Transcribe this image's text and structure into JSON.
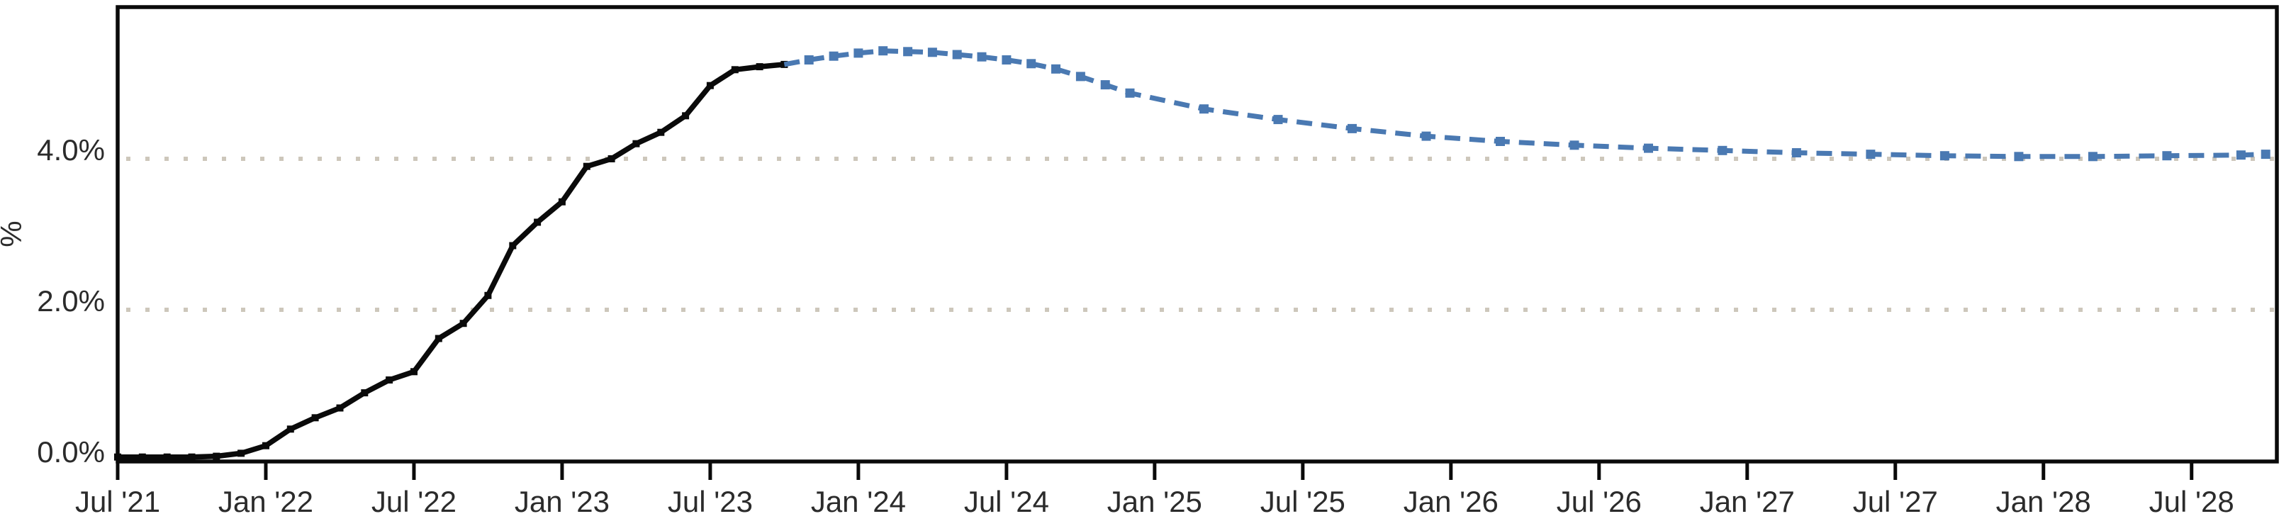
{
  "chart_data": {
    "type": "line",
    "title": "",
    "xlabel": "",
    "ylabel": "%",
    "grid": "dotted horizontal gridlines at labeled y ticks",
    "legend": "none",
    "colors": {
      "axis": "#0a0a0a",
      "tick_label": "#2b2b2b",
      "gridline": "#cdc7bb",
      "historical": "#0a0a0a",
      "forecast": "#4a79b2",
      "background": "#ffffff"
    },
    "y_axis": {
      "label": "%",
      "range": [
        0,
        6.0
      ],
      "ticks": [
        {
          "value": 0,
          "label": "0.0%"
        },
        {
          "value": 2,
          "label": "2.0%"
        },
        {
          "value": 4,
          "label": "4.0%"
        }
      ],
      "gridlines_at": [
        2,
        4
      ]
    },
    "x_axis": {
      "unit": "months since Jul 2021",
      "ticks": [
        {
          "month": 0,
          "label": "Jul '21"
        },
        {
          "month": 6,
          "label": "Jan '22"
        },
        {
          "month": 12,
          "label": "Jul '22"
        },
        {
          "month": 18,
          "label": "Jan '23"
        },
        {
          "month": 24,
          "label": "Jul '23"
        },
        {
          "month": 30,
          "label": "Jan '24"
        },
        {
          "month": 36,
          "label": "Jul '24"
        },
        {
          "month": 42,
          "label": "Jan '25"
        },
        {
          "month": 48,
          "label": "Jul '25"
        },
        {
          "month": 54,
          "label": "Jan '26"
        },
        {
          "month": 60,
          "label": "Jul '26"
        },
        {
          "month": 66,
          "label": "Jan '27"
        },
        {
          "month": 72,
          "label": "Jul '27"
        },
        {
          "month": 78,
          "label": "Jan '28"
        },
        {
          "month": 84,
          "label": "Jul '28"
        }
      ]
    },
    "series": [
      {
        "name": "historical",
        "line_style": "solid",
        "marker": "square",
        "marker_size": 10,
        "line_width": 7.5,
        "color_key": "historical",
        "skip_first_marker": false,
        "points": [
          {
            "date": "Jul '21",
            "month": 0,
            "value": 0.05
          },
          {
            "date": "Aug '21",
            "month": 1,
            "value": 0.05
          },
          {
            "date": "Sep '21",
            "month": 2,
            "value": 0.05
          },
          {
            "date": "Oct '21",
            "month": 3,
            "value": 0.05
          },
          {
            "date": "Nov '21",
            "month": 4,
            "value": 0.06
          },
          {
            "date": "Dec '21",
            "month": 5,
            "value": 0.1
          },
          {
            "date": "Jan '22",
            "month": 6,
            "value": 0.2
          },
          {
            "date": "Feb '22",
            "month": 7,
            "value": 0.42
          },
          {
            "date": "Mar '22",
            "month": 8,
            "value": 0.57
          },
          {
            "date": "Apr '22",
            "month": 9,
            "value": 0.7
          },
          {
            "date": "May '22",
            "month": 10,
            "value": 0.9
          },
          {
            "date": "Jun '22",
            "month": 11,
            "value": 1.07
          },
          {
            "date": "Jul '22",
            "month": 12,
            "value": 1.18
          },
          {
            "date": "Aug '22",
            "month": 13,
            "value": 1.62
          },
          {
            "date": "Sep '22",
            "month": 14,
            "value": 1.82
          },
          {
            "date": "Oct '22",
            "month": 15,
            "value": 2.19
          },
          {
            "date": "Nov '22",
            "month": 16,
            "value": 2.85
          },
          {
            "date": "Dec '22",
            "month": 17,
            "value": 3.16
          },
          {
            "date": "Jan '23",
            "month": 18,
            "value": 3.43
          },
          {
            "date": "Feb '23",
            "month": 19,
            "value": 3.9
          },
          {
            "date": "Mar '23",
            "month": 20,
            "value": 4.0
          },
          {
            "date": "Apr '23",
            "month": 21,
            "value": 4.2
          },
          {
            "date": "May '23",
            "month": 22,
            "value": 4.35
          },
          {
            "date": "Jun '23",
            "month": 23,
            "value": 4.57
          },
          {
            "date": "Jul '23",
            "month": 24,
            "value": 4.97
          },
          {
            "date": "Aug '23",
            "month": 25,
            "value": 5.18
          },
          {
            "date": "Sep '23",
            "month": 26,
            "value": 5.22
          },
          {
            "date": "Oct '23",
            "month": 27,
            "value": 5.25
          }
        ]
      },
      {
        "name": "forecast",
        "line_style": "dashed",
        "marker": "square",
        "marker_size": 13,
        "line_width": 7,
        "color_key": "forecast",
        "skip_first_marker": true,
        "points": [
          {
            "date": "Oct '23",
            "month": 27,
            "value": 5.25
          },
          {
            "date": "Nov '23",
            "month": 28,
            "value": 5.31
          },
          {
            "date": "Dec '23",
            "month": 29,
            "value": 5.36
          },
          {
            "date": "Jan '24",
            "month": 30,
            "value": 5.4
          },
          {
            "date": "Feb '24",
            "month": 31,
            "value": 5.43
          },
          {
            "date": "Mar '24",
            "month": 32,
            "value": 5.42
          },
          {
            "date": "Apr '24",
            "month": 33,
            "value": 5.41
          },
          {
            "date": "May '24",
            "month": 34,
            "value": 5.38
          },
          {
            "date": "Jun '24",
            "month": 35,
            "value": 5.35
          },
          {
            "date": "Jul '24",
            "month": 36,
            "value": 5.31
          },
          {
            "date": "Aug '24",
            "month": 37,
            "value": 5.26
          },
          {
            "date": "Sep '24",
            "month": 38,
            "value": 5.19
          },
          {
            "date": "Oct '24",
            "month": 39,
            "value": 5.09
          },
          {
            "date": "Nov '24",
            "month": 40,
            "value": 4.98
          },
          {
            "date": "Dec '24",
            "month": 41,
            "value": 4.87
          },
          {
            "date": "Mar '25",
            "month": 44,
            "value": 4.66
          },
          {
            "date": "Jun '25",
            "month": 47,
            "value": 4.52
          },
          {
            "date": "Sep '25",
            "month": 50,
            "value": 4.4
          },
          {
            "date": "Dec '25",
            "month": 53,
            "value": 4.3
          },
          {
            "date": "Mar '26",
            "month": 56,
            "value": 4.23
          },
          {
            "date": "Jun '26",
            "month": 59,
            "value": 4.18
          },
          {
            "date": "Sep '26",
            "month": 62,
            "value": 4.14
          },
          {
            "date": "Dec '26",
            "month": 65,
            "value": 4.11
          },
          {
            "date": "Mar '27",
            "month": 68,
            "value": 4.08
          },
          {
            "date": "Jun '27",
            "month": 71,
            "value": 4.06
          },
          {
            "date": "Sep '27",
            "month": 74,
            "value": 4.04
          },
          {
            "date": "Dec '27",
            "month": 77,
            "value": 4.03
          },
          {
            "date": "Mar '28",
            "month": 80,
            "value": 4.03
          },
          {
            "date": "Jun '28",
            "month": 83,
            "value": 4.04
          },
          {
            "date": "Sep '28",
            "month": 86,
            "value": 4.05
          },
          {
            "date": "Oct '28",
            "month": 87,
            "value": 4.06
          }
        ]
      }
    ]
  }
}
